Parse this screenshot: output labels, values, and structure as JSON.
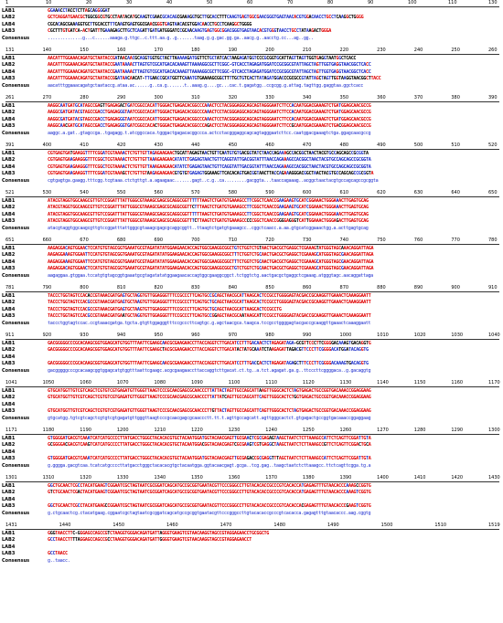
{
  "labels": [
    "LAB1",
    "LAB2",
    "LAB4",
    "LAB3",
    "Consensus"
  ],
  "colors": {
    "conserved": "#e00000",
    "partial": "#1b2cc8",
    "variable": "#000000",
    "consensus": "#1f2fd0"
  },
  "blocks": [
    {
      "ticks": [
        "1",
        "10",
        "20",
        "30",
        "40",
        "50",
        "60",
        "70",
        "80",
        "90",
        "100",
        "110",
        "130"
      ],
      "rows": [
        {
          "label": "LAB1",
          "seq": "                                                                                    GGAAACCTACCTCTTAGCAGGGGAT"
        },
        {
          "label": "LAB2",
          "seq": "GCTCAGGATGAACGCTGGCGGCGTGCCTAATACATGCAAGTCGAACGCACAGCGAAAGGTGCTTGCACCTTTCAAGTGAGTGGCGAACGGGTGAGTAACACGTGGACAACCTGCCTCAAGGCTGGGG"
        },
        {
          "label": "LAB4",
          "seq": "                                     CGCACAGCGAAAGGTGCTTGCACCTTTCAAGTGAGTGGCGAACGGGTGAGTAACACGTGGACAACCTGCCTCAAGGCTGGGG"
        },
        {
          "label": "LAB3",
          "seq": "              CGCTTTGTGATCA-ACTGATTTGAAAGAGCTTGCTCAGATTGATGATGGGATCCGCAACAAGTGAGTGGCGGACGGGTGAGTAACACGTGGGTAACCTGCCTATAAGACTGGGA"
        },
        {
          "label": "Consensus",
          "seq": "..............g...c......aaaga.g.ttgc..c.ttt.aa.g..g.......taag.g.g.gac.gg.ga..aacg.g..aacctg.cc...ag..gg.."
        }
      ]
    },
    {
      "ticks": [
        "131",
        "140",
        "150",
        "160",
        "170",
        "180",
        "190",
        "200",
        "210",
        "220",
        "230",
        "240",
        "250",
        "260"
      ],
      "rows": [
        {
          "label": "LAB1",
          "seq": "AACATTTGGAAACAGATGCTAATACCGATAACAACGCAGGTGGTGCTACTTAAAAAGATGGTTCTGCTATCACTAAGAGATGGTCCCGCGGTGCATTAGTTAGTTGGTGAGGTAATGGCTCACC"
        },
        {
          "label": "LAB2",
          "seq": "AACATTTGGAAACAGATGCTAATACCGAATAAAACTTAGTGTCGCATGACACAAAGTTAAAAGGCGCTTCGGC-GTCACCTAGAGATGGATCCGCGGCGTATTAGCTAGTTGGTGAGGTAACGGCTCACC"
        },
        {
          "label": "LAB4",
          "seq": "AACATTTGGAAACAGATGCTAATACCGAATAAAACTTAGTGTCGCATGACACAAAGTTAAAAGGCGCTTCGGC-GTCACCTAGAGATGGATCCGCGGCGTATTAGCTAGTTGGTGAGGTAACGGCTCACC"
        },
        {
          "label": "LAB3",
          "seq": "AACATTTGGAAACAGATGCTAATACCGGATAACAACAT-TTGAACCGCATGGTTCAAATGTGAAAAGCGGCTTTTGCTGTCACTTATAGATGGACCCGCGCCGTATTAGCTAGTTGGTAAGGTAACGGCTTACC"
        },
        {
          "label": "Consensus",
          "seq": "aacatttggaaacagatgctaataccg.ataa.ac......g..ca.g.......t..aaag.g....gc...cac.t.gagatgg..ccgcgg.g.attag.tagttgg.gaggtaa.ggctcacc"
        }
      ]
    },
    {
      "ticks": [
        "261",
        "270",
        "280",
        "290",
        "300",
        "310",
        "320",
        "330",
        "340",
        "350",
        "360",
        "370",
        "380",
        "390"
      ],
      "rows": [
        {
          "label": "LAB1",
          "seq": "AAGGCAATGATGCATAGCCGAGTTGAGAGACTGATCGGCCACATTGGGACTGAGACACGGCCCAAACTCCTACGGGAGGCAGCAGTAGGGAATCTTCCACAATGGACGAAAGTCTGATGGAGCAACGCCG"
        },
        {
          "label": "LAB2",
          "seq": "AAGGCGATGATACGTAGCCGACCTGAGAGGGTAATCGGCCACATTGGGACTGAGACACGGCCCAAACTCCTACGGGAGGCAGCAGTAGGGAATCTTCCACAATGGACGAAAGTCTGATGGAGCAACGCCG"
        },
        {
          "label": "LAB4",
          "seq": "AAGGCGATGATACGTAGCCGACCTGAGAGGGTAATCGGCCACATTGGGACTGAGACACGGCCCAAACTCCTACGGGAGGCAGCAGTAGGGAATCTTCCACAATGGACGAAAGTCTGATGGAGCAACGCCG"
        },
        {
          "label": "LAB3",
          "seq": "AAGGCAACGATGCATAGCCGACCTGAGAGGGTGATCGGCCACACTGGGACTGAGACACGGCCCAGACTCCTACGGGAGGCAGCAGTAGGGAATCTTCCGCAATGGACGAAAGTCTGACGGAGCAACGCCG"
        },
        {
          "label": "Consensus",
          "seq": "aaggc.a.gat..gtagccga..tgagagg.t.atcggccaca.tgggactgagacacggccca.actcctacgggaggcagcagtagggaatcttcc.caatggacgaaagtctga.ggagcaacgccg"
        }
      ]
    },
    {
      "ticks": [
        "391",
        "400",
        "410",
        "420",
        "430",
        "440",
        "450",
        "460",
        "470",
        "480",
        "490",
        "500",
        "510",
        "520"
      ],
      "rows": [
        {
          "label": "LAB1",
          "seq": "CGTGAGTGATGAAGGTTTTCGGATCGTAAAACTCTGTTGTTAGAGAAGAACTGCATTAGAGTAACTGTTCAATGTGTGACGGTATCTAACCAGAAAGCCACGGCTAACTACGTGCCAGCAGCCGCGGTA"
        },
        {
          "label": "LAB2",
          "seq": "CGTGAGTGAAGAAGGGTTTCGGCTCGTAAAACTCTGTTGTTAAAGAAGAACATATCTGAGAGTAACTGTTCAGGTATTGACGGTATTTAACCAGAAAGCCACGGCTAACTACGTGCCAGCAGCCGCGGTA"
        },
        {
          "label": "LAB4",
          "seq": "CGTGAGTGAAGAAGGGTTTCGGCTCGTAAAACTCTGTTGTTAAAGAAGAACATATCTGAGAGTAACTGTTCAGGTATTGACGGTATTTAACCAGAAAGCCACGGCTAACTACGTGCCAGCAGCCGCGGTA"
        },
        {
          "label": "LAB3",
          "seq": "CGTGAGTGAAGAAGGTTTTCGGATCGTAAAGCTCTGTTGTAAGAGAAGAACGTGTGTGAGAGTGGAAAGTTCACACAGTGACGGTAACTTACCAGAAAGGGACGGCTAACTACGTGCCAGCAGCCGCGGTA"
        },
        {
          "label": "Consensus",
          "seq": "cgtgagtga.gaagg.tttcgg.tcgtaaa.ctctgttgt.a.agaagaac.......gagt..c.g..ca.........gacggta...taaccagaaag..acggctaactacgtgccagcagccgcggta"
        }
      ]
    },
    {
      "ticks": [
        "521",
        "530",
        "540",
        "550",
        "560",
        "570",
        "580",
        "590",
        "600",
        "610",
        "620",
        "630",
        "640",
        "650"
      ],
      "rows": [
        {
          "label": "LAB1",
          "seq": "ATACGTAGGTGGCAAGCGTTGTCCGGATTTATTGGGCGTAAAGCGAGCGCAGGCGGTTTTTTAAGTCTGATGTGAAAGCCTTCGGCTCAACCGAAGAAGTGCATCGGAAACTGGGAAACTTGAGTGCAG"
        },
        {
          "label": "LAB2",
          "seq": "ATACGTAGGTGGCAAGCGTTGTCCGGATTTATTGGGCGTAAAGCGAGCGCAGGCGGTTCTTTAAGTCTGATGTGAAAGCCTTCGGCTCAACCGAAGAAGTGCATCGGAAACTGGGAAACTTGAGTGCAG"
        },
        {
          "label": "LAB4",
          "seq": "ATACGTAGGTGGCAAGCGTTGTCCGGATTTATTGGGCGTAAAGCGAGCGCAGGCGGTTTTTTAAGTCTGATGTGAAAGCCTTCGGCTCAACCGAAGAAGTGCATCGGAAACTGGGAAACTTGAGTGCAG"
        },
        {
          "label": "LAB3",
          "seq": "ATACGTAGGTGGCAAGCGTTGTCCGGATTTATTGGGCGTAAAGCGAGCGCAGGCGGTTTCTTAAGTCTGATGTGAAAGCCCCCGGCTCAACCGGGGAGGGTCATTGGAAACTGGGAGACTTGAGTGCAG"
        },
        {
          "label": "Consensus",
          "seq": "atacgtaggtggcaagcgttgtccggatttattgggcgtaaagcgagcgcaggcggtt..ttaagtctgatgtgaaagcc..cggctcaacc.a.aa.gtgcatcggaaactgg.a.acttgagtgcag"
        }
      ]
    },
    {
      "ticks": [
        "651",
        "660",
        "670",
        "680",
        "690",
        "700",
        "710",
        "720",
        "730",
        "740",
        "750",
        "760",
        "770",
        "780"
      ],
      "rows": [
        {
          "label": "LAB1",
          "seq": "AAGAGGACAGTGGAACTCCATGTGTAGCGGTGAAATGCGTAGATATATGGAAGAACACCAGTGGCGAAGGCGGCTGTCTGGTCTGTAACTGACGCTGAGGCTCGAAAGTATGGGTAGCAAACAGGATTAGA"
        },
        {
          "label": "LAB2",
          "seq": "AAGAGGAAAGTGGAATTCCATGTGTAGCGGTGAAATGCGTAGATATATGGAAGAACACCAGTGGCGAAGGCGGCTTTCTGGTCTGCAACTGACGCTGAGGCTCGAAAGCATGGGTAGCGAACAGGATTAGA"
        },
        {
          "label": "LAB4",
          "seq": "AAGAGGAAAGTGGAATTCCATGTGTAGCGGTGAAATGCGTAGATATATGGAAGAACACCAGTGGCGAAGGCGGCTTTCTGGTCTGCAACTGACGCTGAGGCTCGAAAGCATGGGTAGCGAACAGGATTAGA"
        },
        {
          "label": "LAB3",
          "seq": "AAGAGGACAGTGGAACTCCATGTGTAGCGGTGAAATGCGTAGATATATGGAAGAACACCAGTGGCGAAGGCGGCTGTCTGGTCTGCAACTGACGCTGAGGCTCGAAAGCATGGGTAGCGAACAGGATTAGA"
        },
        {
          "label": "Consensus",
          "seq": "aagaggaa.gtggaa.tccatgtgtagcggtgaaatgcgtagatatatggaagaacaccagtggcgaaggcggct.tctggtctg.aactgacgctgaggctcgaaag.atgggtagc.aacaggattaga"
        }
      ]
    },
    {
      "ticks": [
        "781",
        "790",
        "800",
        "810",
        "820",
        "830",
        "840",
        "850",
        "860",
        "870",
        "880",
        "890",
        "900",
        "910"
      ],
      "rows": [
        {
          "label": "LAB1",
          "seq": "TACCCTGGTAGTCCACACCGTAAACGATGAGTGCTAGGTGTTGGAGGGTTTCCGCCCTTCAGTGCCGCAGCTAACGCATTAAGCACTCCGCCTGGGGAGTACGACCGCAAGGTTGAAACTCAAAGGAATT"
        },
        {
          "label": "LAB2",
          "seq": "TACCCTGGTAGTCCACGCCGTAAACGATGAGTGCTAAGTGTTGGAGGGTTTCCGCCCTTCAGTGCTGCAGCTAACGCATTAAGCACTCCGCCTGGGGAGTACGACCGCAAGGTTGAAACTCAAAGGAATT"
        },
        {
          "label": "LAB4",
          "seq": "TACCCTGGTAGTCCACGCCGTAAACGATGAGTGCTAAGTGTTGGAGGGTTTCCGCCCTTCAGTGCTGCAGCTAACGCATTAAGCACTCCGCCTG"
        },
        {
          "label": "LAB3",
          "seq": "TACCCTGGTAGTCCACGCCGTAAACGATGAATGCTAGGTGTTGGAGGGTTTCCGCCCTTCAGTGCCGGAGCTAACGCAATAAGCATTCCGCCTGGGGAGTACGACCGCAAGGTTGAAACTCAAAGGAATT"
        },
        {
          "label": "Consensus",
          "seq": "taccctggtagtccac.ccgtaaacgatga.tgcta.gtgttggagggtttccgcccttcagtgc.g.agctaacgca.taagca.tccgcctggggagtacgaccgcaaggttgaaactcaaaggaatt"
        }
      ]
    },
    {
      "ticks": [
        "911",
        "920",
        "930",
        "940",
        "950",
        "960",
        "970",
        "980",
        "990",
        "1000",
        "1010",
        "1020",
        "1030",
        "1040"
      ],
      "rows": [
        {
          "label": "LAB1",
          "seq": "GACGGGGGCCCGCACAAGCGGTGGAGCATGTGGTTTAATTCGAAGCAACGCGAAGAACCTTACCAGGTCTTGACATCCTTTGACAACTCTAGAGATAGA-GCGTTCCCTTCGGGGACAAAGTGACAGGTG"
        },
        {
          "label": "LAB2",
          "seq": "GACGGGGGCCCGCACAAGCGGTGGAGCATGTGGTTTAATTCGAAGCTACGCGAAGAACCTTACCAGGTCTTGACATACTATGCAAATCTAAGAGATTAGACGTTCCCTTCGGGGACATGGATACAGGTG"
        },
        {
          "label": "LAB4",
          "seq": "                                                                                                                         "
        },
        {
          "label": "LAB3",
          "seq": "GACGGGGGCCCGCACAAGCGGTGGAGCATGTGGTTTAATTCGAAGCAACGCGAAGAACCTTACCAGGTCTTGACATCCTTTGACCACTCTAGAGATAGAGCTTTCCCTTCGGGGACAAAGTGACAGGTG"
        },
        {
          "label": "Consensus",
          "seq": "gacgggggcccgcacaagcggtggagcatgtggtttaattcgaagc.acgcgaagaaccttaccaggtcttgacat.ct.tg..a.tct.agagat.ga.g..ttcccttcggggaca..g.gacaggtg"
        }
      ]
    },
    {
      "ticks": [
        "1041",
        "1050",
        "1060",
        "1070",
        "1080",
        "1090",
        "1100",
        "1110",
        "1120",
        "1130",
        "1140",
        "1150",
        "1160",
        "1170"
      ],
      "rows": [
        {
          "label": "LAB1",
          "seq": "GTGCATGGTTGTCGTCAGCTCGTGTCGTGAGATGTTGGGTTAAGTCCCGCAACGAGCGCAACCCTTATTACTAGTTGCCAGCATTAAGTTGGGCACTCTAGTGAGACTGCCGGTGACAAACCGGAGGAAG"
        },
        {
          "label": "LAB2",
          "seq": "GTGCATGGTTGTCGTCAGCTCGTGTCGTGAGATGTTGGGTTAAGTCCCGCAACGAGCGCAACCCTTATTATCAGTTGCCAGCATTCAGTTGGGCACTCTGGTGAGACTGCCGGTGACAAACCGGAGGAAG"
        },
        {
          "label": "LAB4",
          "seq": "                                                                                                                         "
        },
        {
          "label": "LAB3",
          "seq": "GTGCATGGTTGTCGTCAGCTCGTGTCGTGAGATGTTGGGTTAAGTCCCGCAACGAGCGCAACCCTTGTTACTAGTTGCCAGCATTCAGTTGGGCACTCTAGTGAGACTGCCGGTGACAAACCGGAGGAAG"
        },
        {
          "label": "Consensus",
          "seq": "gtgcatgg.tgtcgtcagctcgtgtcgtgagatgttgggttaagtcccgcaacgagcgcaaccctt.tt.t.agttgccagcatt.agttgggcactct.gtgagactgccggtgacaaaccggaggaag"
        }
      ]
    },
    {
      "ticks": [
        "1171",
        "1180",
        "1190",
        "1200",
        "1210",
        "1220",
        "1230",
        "1240",
        "1250",
        "1260",
        "1270",
        "1280",
        "1290",
        "1300"
      ],
      "rows": [
        {
          "label": "LAB1",
          "seq": "GTGGGGATGACGTCAAATCATCATGCCCCTTATGACCTGGGCTACACACGTGCTACAATGGATGGTACAACGAGTTGCGAACTCGCGAGAGTAAGCTAATCTCTTAAAGCCATTCTCAGTTCGGATTGTA"
        },
        {
          "label": "LAB2",
          "seq": "GCGGGGACGACGTCAAGTCATCATGCCCCTTATGACCTGGGCTACACACGTGCTACAATGGACGGTACAACGAGTCGCGAAGTCGTGAGGCTAAGCTAATCTCTTAAAGCCGTTCTCAGTTCGGACTGCA"
        },
        {
          "label": "LAB4",
          "seq": "                                                                                                                         "
        },
        {
          "label": "LAB3",
          "seq": "GTGGGGATGACGTCAAATCATCATGCCCCTTATGACCTGGGCTACACACGTGCTACAATGGATGGTACAACGAGTTGCGAGACCGCGAGGTTTAGCTAATCTCTTAAAGCCATTCTCAGTTCGGATTGTA"
        },
        {
          "label": "Consensus",
          "seq": "g.gggga.gacgtcaa.tcatcatgccccttatgacctgggctacacacgtgctacaatgga.ggtacaacgagt.gcga..tcg.gag..taagctaatctcttaaagcc.ttctcagttcgga.tg.a"
        }
      ]
    },
    {
      "ticks": [
        "1301",
        "1310",
        "1320",
        "1330",
        "1340",
        "1350",
        "1360",
        "1370",
        "1380",
        "1390",
        "1400",
        "1410",
        "1420",
        "1430"
      ],
      "rows": [
        {
          "label": "LAB1",
          "seq": "GGCTGCAACTCGCCTACATGAAGTCGGAATCGCTAGTAATCGCGGATCAGCATGCCGCGGTGAATACGTTCCCGGGCCTTGTACACACCGCCCGTCACACCATGAGAGTTTGTAACACCCAAAGCCGGTG"
        },
        {
          "label": "LAB2",
          "seq": "GTCTGCAACTCGACTACATGAAGTCGGAATCGCTAGTAATCGCGGATCAGCATGCCGCGGTGAATACGTTCCCGGGCCTTGTACACACCGCCCGTCACACCATGAGAGTTTGTAACACCCAAAGTCGGTG"
        },
        {
          "label": "LAB4",
          "seq": "                                                                                                                         "
        },
        {
          "label": "LAB3",
          "seq": "GGCTGCAACTCGCCTACATGAAGCCGGAATCGCTAGTAATCGCGGATCAGCATGCCGCGGTGAATACGTTCCCGGGCCTTGTACACACCGCCCGTCACACCACGAGAGTTTGTAACACCCGAAGTCGGTG"
        },
        {
          "label": "Consensus",
          "seq": "g.ctgcaactcg.ctacatgaag.cggaatcgctagtaatcgcggatcagcatgccgcggtgaatacgttcccgggccttgtacacaccgcccgtcacacca.gagagtttgtaacaccc.aag.cggtg"
        }
      ]
    },
    {
      "ticks": [
        "1431",
        "1440",
        "1450",
        "1460",
        "1470",
        "1480",
        "1490",
        "1500",
        "1510",
        "1519"
      ],
      "rows": [
        {
          "label": "LAB1",
          "seq": "GGGTAACCTTC-GGGAGCCAGCCGTCTAAGGTGGGACAGATGATTAGGGTGAAGTCGTAACAAGGTAGCCGTAGGAGAACCTGCGGCTG"
        },
        {
          "label": "LAB2",
          "seq": "GCCTAACCTTTTAGGAGCCAGCCGCCTAAGGTGGGACAGATGATTGGGGTGAAGTCGTAACAAGGTAGCCGTAGGAGAACCT"
        },
        {
          "label": "LAB4",
          "seq": ""
        },
        {
          "label": "LAB3",
          "seq": "GCCTAACC"
        },
        {
          "label": "Consensus",
          "seq": "g..taacc."
        }
      ]
    }
  ]
}
